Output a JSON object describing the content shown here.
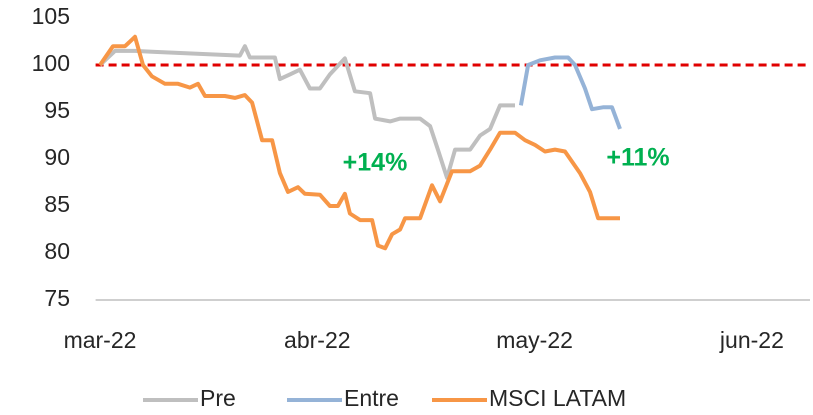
{
  "chart_data": {
    "type": "line",
    "xticks": [
      {
        "value": 0,
        "label": "mar-22"
      },
      {
        "value": 1,
        "label": "abr-22"
      },
      {
        "value": 2,
        "label": "may-22"
      },
      {
        "value": 3,
        "label": "jun-22"
      }
    ],
    "xlim": [
      -0.02,
      3.27
    ],
    "ylim": [
      75,
      105
    ],
    "yticks": [
      75,
      80,
      85,
      90,
      95,
      100,
      105
    ],
    "reference_line": {
      "value": 100,
      "color": "#e00000"
    },
    "annotations": [
      {
        "text": "+14%",
        "color": "#00b050"
      },
      {
        "text": "+11%",
        "color": "#00b050"
      }
    ],
    "legend": "bottom",
    "series": [
      {
        "name": "Pre",
        "color": "#bfbfbf",
        "x": [
          0,
          0.069,
          0.161,
          0.239,
          0.644,
          0.667,
          0.69,
          0.805,
          0.828,
          0.874,
          0.92,
          0.966,
          1.012,
          1.058,
          1.127,
          1.173,
          1.243,
          1.266,
          1.335,
          1.381,
          1.473,
          1.519,
          1.555,
          1.597,
          1.634,
          1.703,
          1.749,
          1.795,
          1.841,
          1.91
        ],
        "values": [
          100,
          101.5,
          101.5,
          101.4,
          101,
          102,
          100.8,
          100.8,
          98.5,
          99,
          99.5,
          97.5,
          97.5,
          99,
          100.7,
          97.2,
          97,
          94.3,
          94,
          94.3,
          94.3,
          93.5,
          91,
          88,
          91,
          91,
          92.5,
          93.2,
          95.7,
          95.7
        ]
      },
      {
        "name": "Entre",
        "color": "#95b3d7",
        "x": [
          1.937,
          1.97,
          2.025,
          2.094,
          2.154,
          2.186,
          2.232,
          2.264,
          2.315,
          2.356,
          2.393
        ],
        "values": [
          95.7,
          100,
          100.5,
          100.8,
          100.8,
          100,
          97.5,
          95.3,
          95.5,
          95.5,
          93.2
        ]
      },
      {
        "name": "MSCI LATAM",
        "color": "#f79646",
        "x": [
          0,
          0.06,
          0.115,
          0.161,
          0.198,
          0.239,
          0.299,
          0.359,
          0.414,
          0.451,
          0.483,
          0.575,
          0.621,
          0.667,
          0.7,
          0.746,
          0.792,
          0.828,
          0.865,
          0.911,
          0.943,
          1.012,
          1.058,
          1.095,
          1.127,
          1.15,
          1.197,
          1.252,
          1.279,
          1.312,
          1.344,
          1.381,
          1.404,
          1.473,
          1.528,
          1.565,
          1.62,
          1.703,
          1.749,
          1.795,
          1.841,
          1.91,
          1.956,
          2.002,
          2.048,
          2.094,
          2.14,
          2.209,
          2.255,
          2.292,
          2.393
        ],
        "values": [
          100,
          102,
          102,
          103,
          100,
          98.8,
          98,
          98,
          97.6,
          98,
          96.7,
          96.7,
          96.5,
          96.8,
          96,
          92,
          92,
          88.5,
          86.5,
          87,
          86.3,
          86.2,
          85,
          85,
          86.3,
          84.2,
          83.5,
          83.5,
          80.8,
          80.5,
          82,
          82.5,
          83.7,
          83.7,
          87.2,
          85.5,
          88.7,
          88.7,
          89.3,
          91,
          92.8,
          92.8,
          92,
          91.5,
          90.8,
          91,
          90.8,
          88.5,
          86.5,
          83.7,
          83.7
        ]
      }
    ]
  }
}
